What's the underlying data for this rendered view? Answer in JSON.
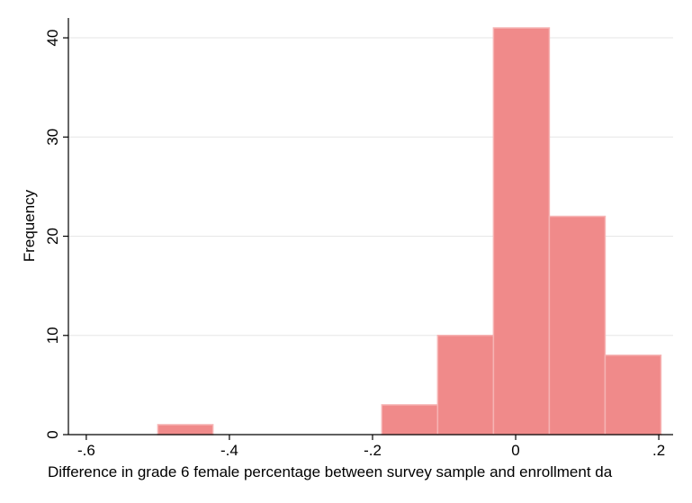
{
  "chart_data": {
    "type": "bar",
    "title": "",
    "xlabel": "Difference in grade 6 female percentage between survey sample and enrollment da",
    "ylabel": "Frequency",
    "xlim": [
      -0.625,
      0.22
    ],
    "ylim": [
      0,
      42
    ],
    "x_ticks": [
      {
        "value": -0.6,
        "label": "-.6"
      },
      {
        "value": -0.4,
        "label": "-.4"
      },
      {
        "value": -0.2,
        "label": "-.2"
      },
      {
        "value": 0,
        "label": "0"
      },
      {
        "value": 0.2,
        "label": ".2"
      }
    ],
    "y_ticks": [
      {
        "value": 0,
        "label": "0"
      },
      {
        "value": 10,
        "label": "10"
      },
      {
        "value": 20,
        "label": "20"
      },
      {
        "value": 30,
        "label": "30"
      },
      {
        "value": 40,
        "label": "40"
      }
    ],
    "grid": "horizontal",
    "bins": [
      {
        "x0": -0.5,
        "x1": -0.423,
        "count": 1
      },
      {
        "x0": -0.187,
        "x1": -0.109,
        "count": 3
      },
      {
        "x0": -0.109,
        "x1": -0.031,
        "count": 10
      },
      {
        "x0": -0.031,
        "x1": 0.047,
        "count": 41
      },
      {
        "x0": 0.047,
        "x1": 0.125,
        "count": 22
      },
      {
        "x0": 0.125,
        "x1": 0.203,
        "count": 8
      }
    ],
    "colors": {
      "bar_fill": "#f08a8a",
      "bar_edge": "#f6b3b3",
      "grid": "#e6e6e6",
      "axis": "#000000"
    }
  }
}
